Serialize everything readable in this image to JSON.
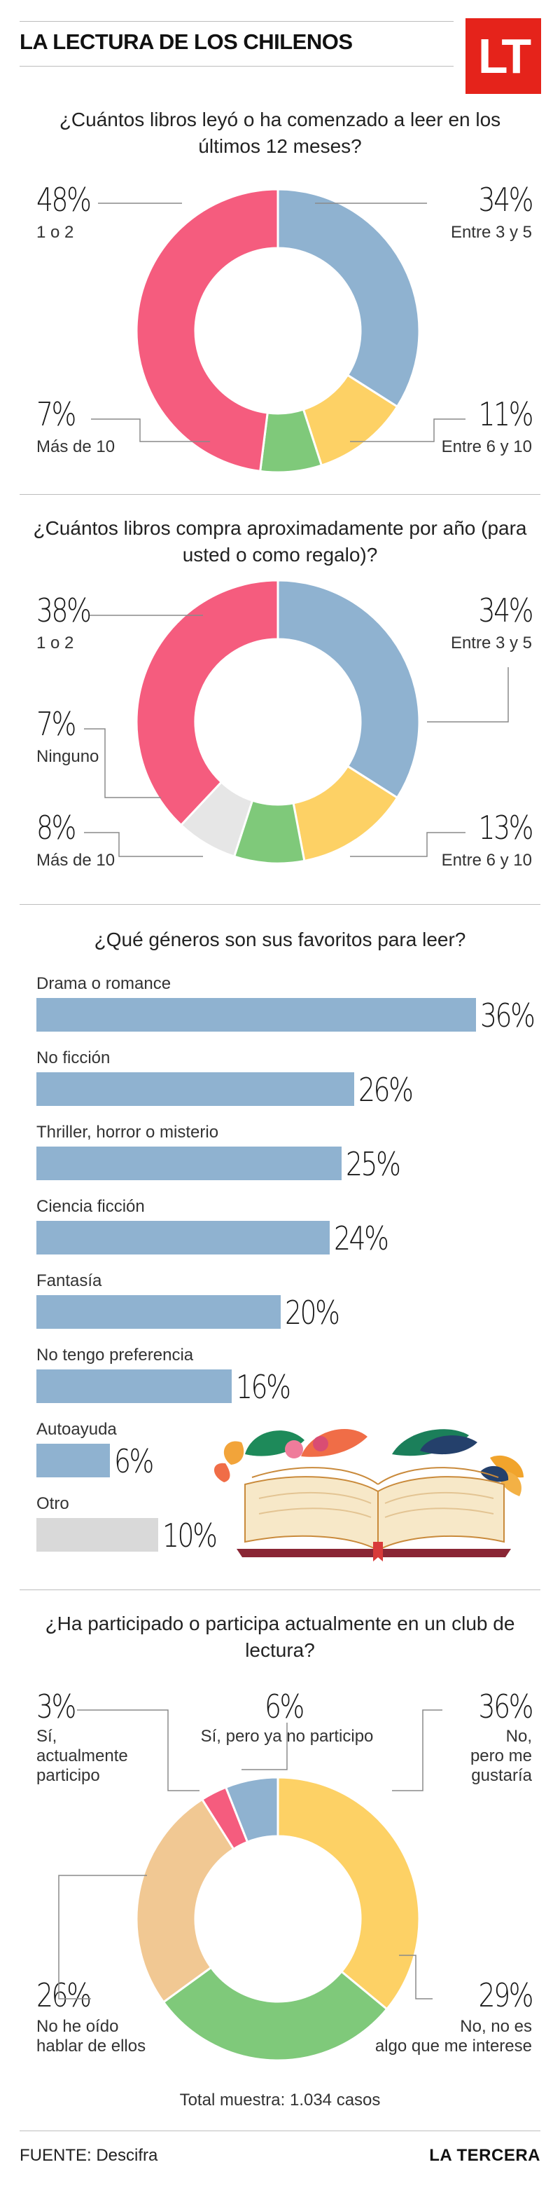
{
  "header": {
    "title": "LA LECTURA DE LOS CHILENOS",
    "logo": "LT"
  },
  "colors": {
    "pink": "#f55c7e",
    "blue": "#8fb2d0",
    "yellow": "#fdd165",
    "green": "#7fc97a",
    "peach": "#f1c893",
    "gray": "#e6e6e6",
    "bar": "#8fb2d0",
    "bar_other": "#d9d9d9"
  },
  "chart_data": [
    {
      "type": "pie",
      "style": "donut",
      "title": "¿Cuántos libros leyó o ha comenzado a leer en los últimos 12 meses?",
      "slices": [
        {
          "pct": "34%",
          "label": "Entre 3 y 5",
          "value": 34,
          "color": "#8fb2d0"
        },
        {
          "pct": "11%",
          "label": "Entre 6 y 10",
          "value": 11,
          "color": "#fdd165"
        },
        {
          "pct": "7%",
          "label": "Más de 10",
          "value": 7,
          "color": "#7fc97a"
        },
        {
          "pct": "48%",
          "label": "1 o 2",
          "value": 48,
          "color": "#f55c7e"
        }
      ]
    },
    {
      "type": "pie",
      "style": "donut",
      "title": "¿Cuántos libros compra aproximadamente por año (para usted o como regalo)?",
      "slices": [
        {
          "pct": "34%",
          "label": "Entre 3 y 5",
          "value": 34,
          "color": "#8fb2d0"
        },
        {
          "pct": "13%",
          "label": "Entre 6 y 10",
          "value": 13,
          "color": "#fdd165"
        },
        {
          "pct": "8%",
          "label": "Más de 10",
          "value": 8,
          "color": "#7fc97a"
        },
        {
          "pct": "7%",
          "label": "Ninguno",
          "value": 7,
          "color": "#e6e6e6"
        },
        {
          "pct": "38%",
          "label": "1 o 2",
          "value": 38,
          "color": "#f55c7e"
        }
      ]
    },
    {
      "type": "bar",
      "orientation": "horizontal",
      "title": "¿Qué géneros son sus favoritos para leer?",
      "categories": [
        "Drama o romance",
        "No ficción",
        "Thriller, horror o misterio",
        "Ciencia ficción",
        "Fantasía",
        "No tengo preferencia",
        "Autoayuda",
        "Otro"
      ],
      "values": [
        36,
        26,
        25,
        24,
        20,
        16,
        6,
        10
      ],
      "value_labels": [
        "36%",
        "26%",
        "25%",
        "24%",
        "20%",
        "16%",
        "6%",
        "10%"
      ],
      "colors": [
        "#8fb2d0",
        "#8fb2d0",
        "#8fb2d0",
        "#8fb2d0",
        "#8fb2d0",
        "#8fb2d0",
        "#8fb2d0",
        "#d9d9d9"
      ]
    },
    {
      "type": "pie",
      "style": "donut",
      "title": "¿Ha participado o participa actualmente en un club de lectura?",
      "slices": [
        {
          "pct": "36%",
          "label": "No, pero me gustaría",
          "label_lines": [
            "No,",
            "pero me",
            "gustaría"
          ],
          "value": 36,
          "color": "#fdd165"
        },
        {
          "pct": "29%",
          "label": "No, no es algo que me interese",
          "label_lines": [
            "No, no es",
            "algo que me interese"
          ],
          "value": 29,
          "color": "#7fc97a"
        },
        {
          "pct": "26%",
          "label": "No he oído hablar de ellos",
          "label_lines": [
            "No he oído",
            "hablar de ellos"
          ],
          "value": 26,
          "color": "#f1c893"
        },
        {
          "pct": "3%",
          "label": "Sí, actualmente participo",
          "label_lines": [
            "Sí,",
            "actualmente",
            "participo"
          ],
          "value": 3,
          "color": "#f55c7e"
        },
        {
          "pct": "6%",
          "label": "Sí, pero ya no participo",
          "label_lines": [
            "Sí, pero ya no participo"
          ],
          "value": 6,
          "color": "#8fb2d0"
        }
      ],
      "note": "Total muestra: 1.034 casos"
    }
  ],
  "footer": {
    "source": "FUENTE: Descifra",
    "brand": "LA TERCERA"
  }
}
